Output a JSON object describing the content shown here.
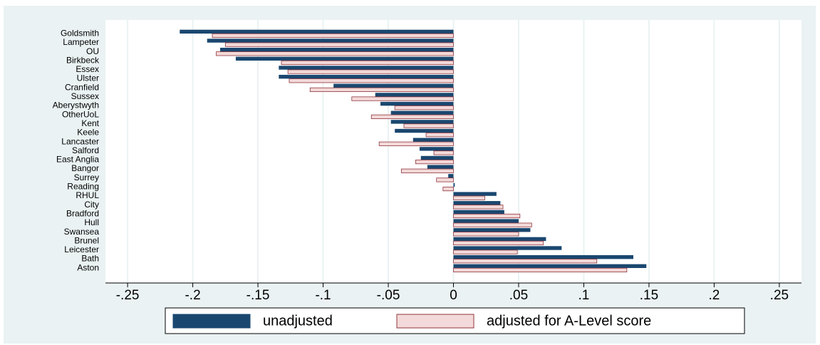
{
  "chart_data": {
    "type": "hbar",
    "categories": [
      "Goldsmith",
      "Lampeter",
      "OU",
      "Birkbeck",
      "Essex",
      "Ulster",
      "Cranfield",
      "Sussex",
      "Aberystwyth",
      "OtherUoL",
      "Kent",
      "Keele",
      "Lancaster",
      "Salford",
      "East Anglia",
      "Bangor",
      "Surrey",
      "Reading",
      "RHUL",
      "City",
      "Bradford",
      "Hull",
      "Swansea",
      "Brunel",
      "Leicester",
      "Bath",
      "Aston"
    ],
    "series": [
      {
        "name": "unadjusted",
        "color": "#1a476f",
        "values": [
          -0.21,
          -0.189,
          -0.179,
          -0.167,
          -0.134,
          -0.134,
          -0.092,
          -0.06,
          -0.056,
          -0.048,
          -0.048,
          -0.045,
          -0.031,
          -0.026,
          -0.025,
          -0.02,
          -0.004,
          0.001,
          0.033,
          0.036,
          0.039,
          0.05,
          0.059,
          0.071,
          0.083,
          0.138,
          0.148
        ]
      },
      {
        "name": "adjusted for A-Level score",
        "color": "#f3d9d9",
        "values": [
          -0.185,
          -0.175,
          -0.182,
          -0.132,
          -0.127,
          -0.126,
          -0.11,
          -0.078,
          -0.045,
          -0.063,
          -0.038,
          -0.021,
          -0.057,
          -0.015,
          -0.029,
          -0.04,
          -0.013,
          -0.008,
          0.024,
          0.038,
          0.051,
          0.06,
          0.05,
          0.069,
          0.049,
          0.11,
          0.133
        ]
      }
    ],
    "xlim": [
      -0.267,
      0.267
    ],
    "xticks": [
      {
        "value": -0.25,
        "label": "-.25"
      },
      {
        "value": -0.2,
        "label": "-.2"
      },
      {
        "value": -0.15,
        "label": "-.15"
      },
      {
        "value": -0.1,
        "label": "-.1"
      },
      {
        "value": -0.05,
        "label": "-.05"
      },
      0,
      {
        "value": 0.05,
        "label": ".05"
      },
      {
        "value": 0.1,
        "label": ".1"
      },
      {
        "value": 0.15,
        "label": ".15"
      },
      {
        "value": 0.2,
        "label": ".2"
      },
      {
        "value": 0.25,
        "label": ".25"
      }
    ],
    "grid": true
  }
}
